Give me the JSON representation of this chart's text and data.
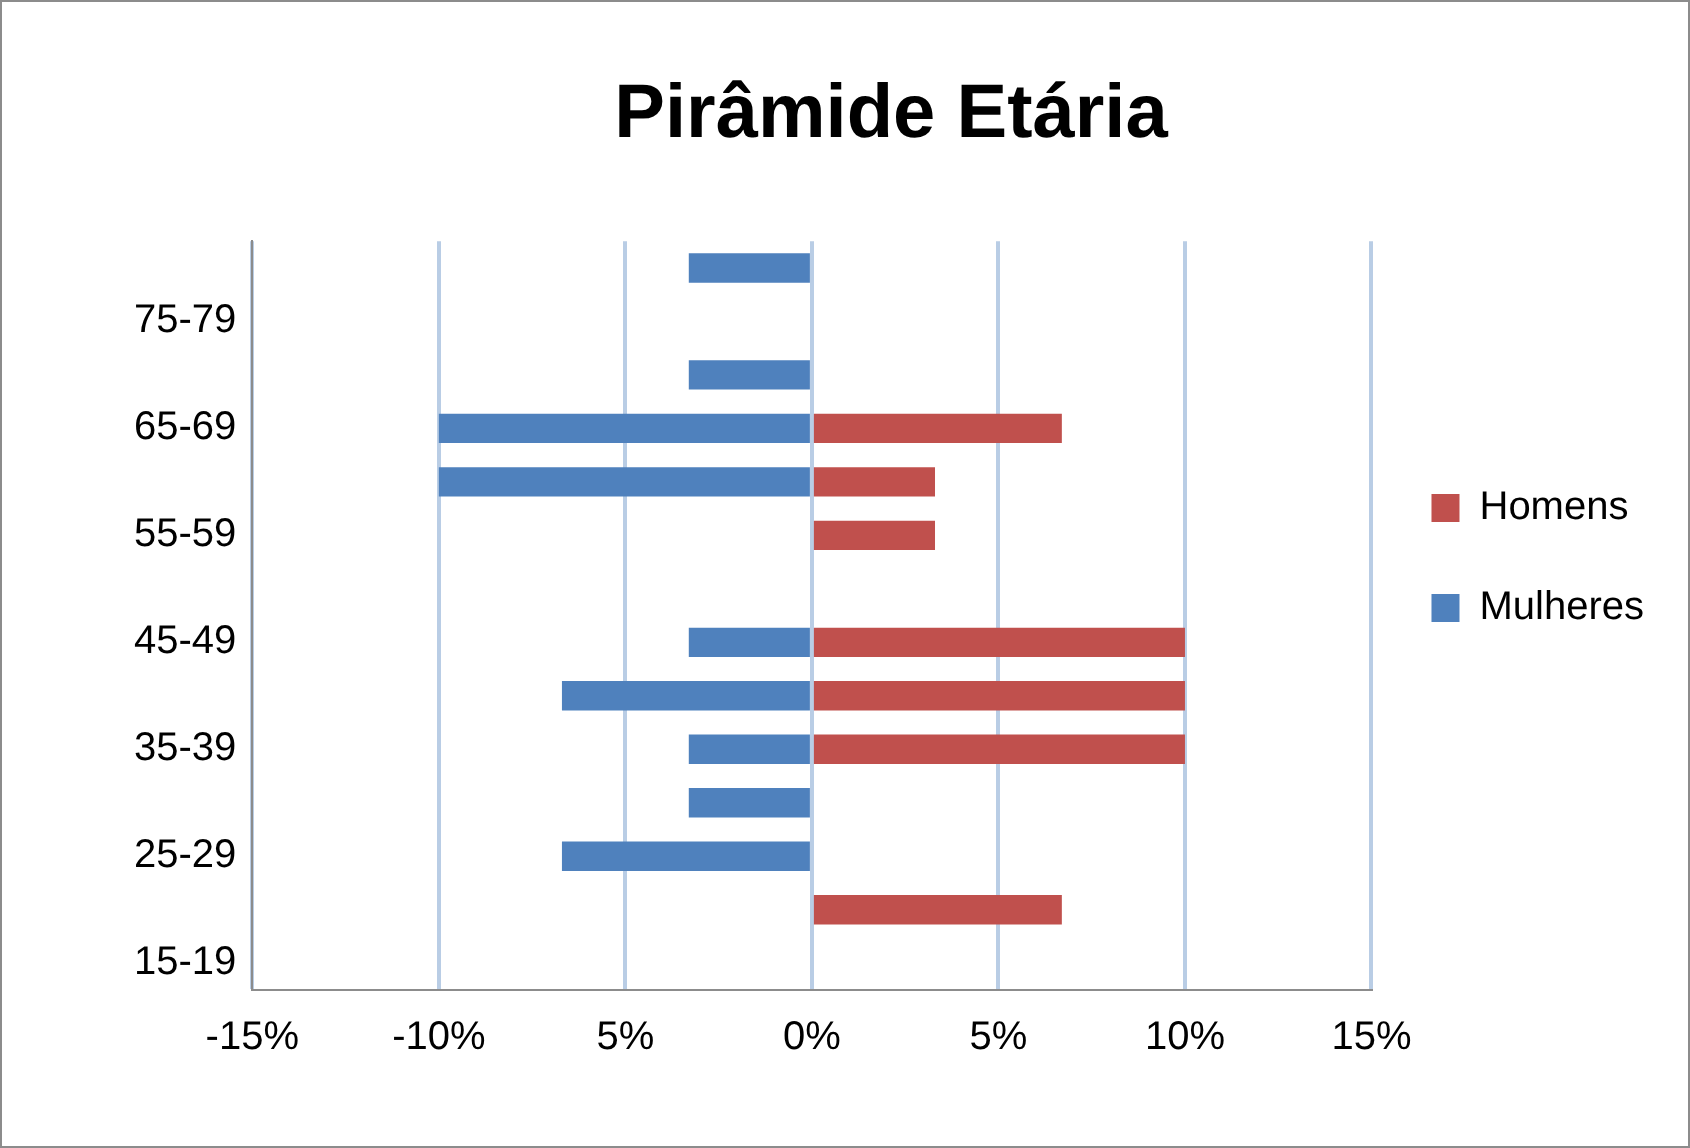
{
  "chart_data": {
    "type": "bar",
    "orientation": "horizontal",
    "title": "Pirâmide Etária",
    "categories": [
      null,
      "75-79",
      null,
      "65-69",
      null,
      "55-59",
      null,
      "45-49",
      null,
      "35-39",
      null,
      "25-29",
      null,
      "15-19"
    ],
    "series": [
      {
        "name": "Homens",
        "color": "#c0504d",
        "values": [
          0,
          0,
          0,
          6.7,
          3.3,
          3.3,
          0,
          10,
          10,
          10,
          0,
          0,
          6.7,
          0
        ]
      },
      {
        "name": "Mulheres",
        "color": "#4f81bd",
        "values": [
          -3.3,
          0,
          -3.3,
          -10,
          -10,
          0,
          0,
          -3.3,
          -6.7,
          -3.3,
          -3.3,
          -6.7,
          0,
          0
        ]
      }
    ],
    "xlim": [
      -15,
      15
    ],
    "xticks": [
      {
        "value": -15,
        "label": "-15%"
      },
      {
        "value": -10,
        "label": "-10%"
      },
      {
        "value": -5,
        "label": "5%"
      },
      {
        "value": 0,
        "label": "0%"
      },
      {
        "value": 5,
        "label": "5%"
      },
      {
        "value": 10,
        "label": "10%"
      },
      {
        "value": 15,
        "label": "15%"
      }
    ],
    "grid": "x",
    "legend": "right"
  }
}
